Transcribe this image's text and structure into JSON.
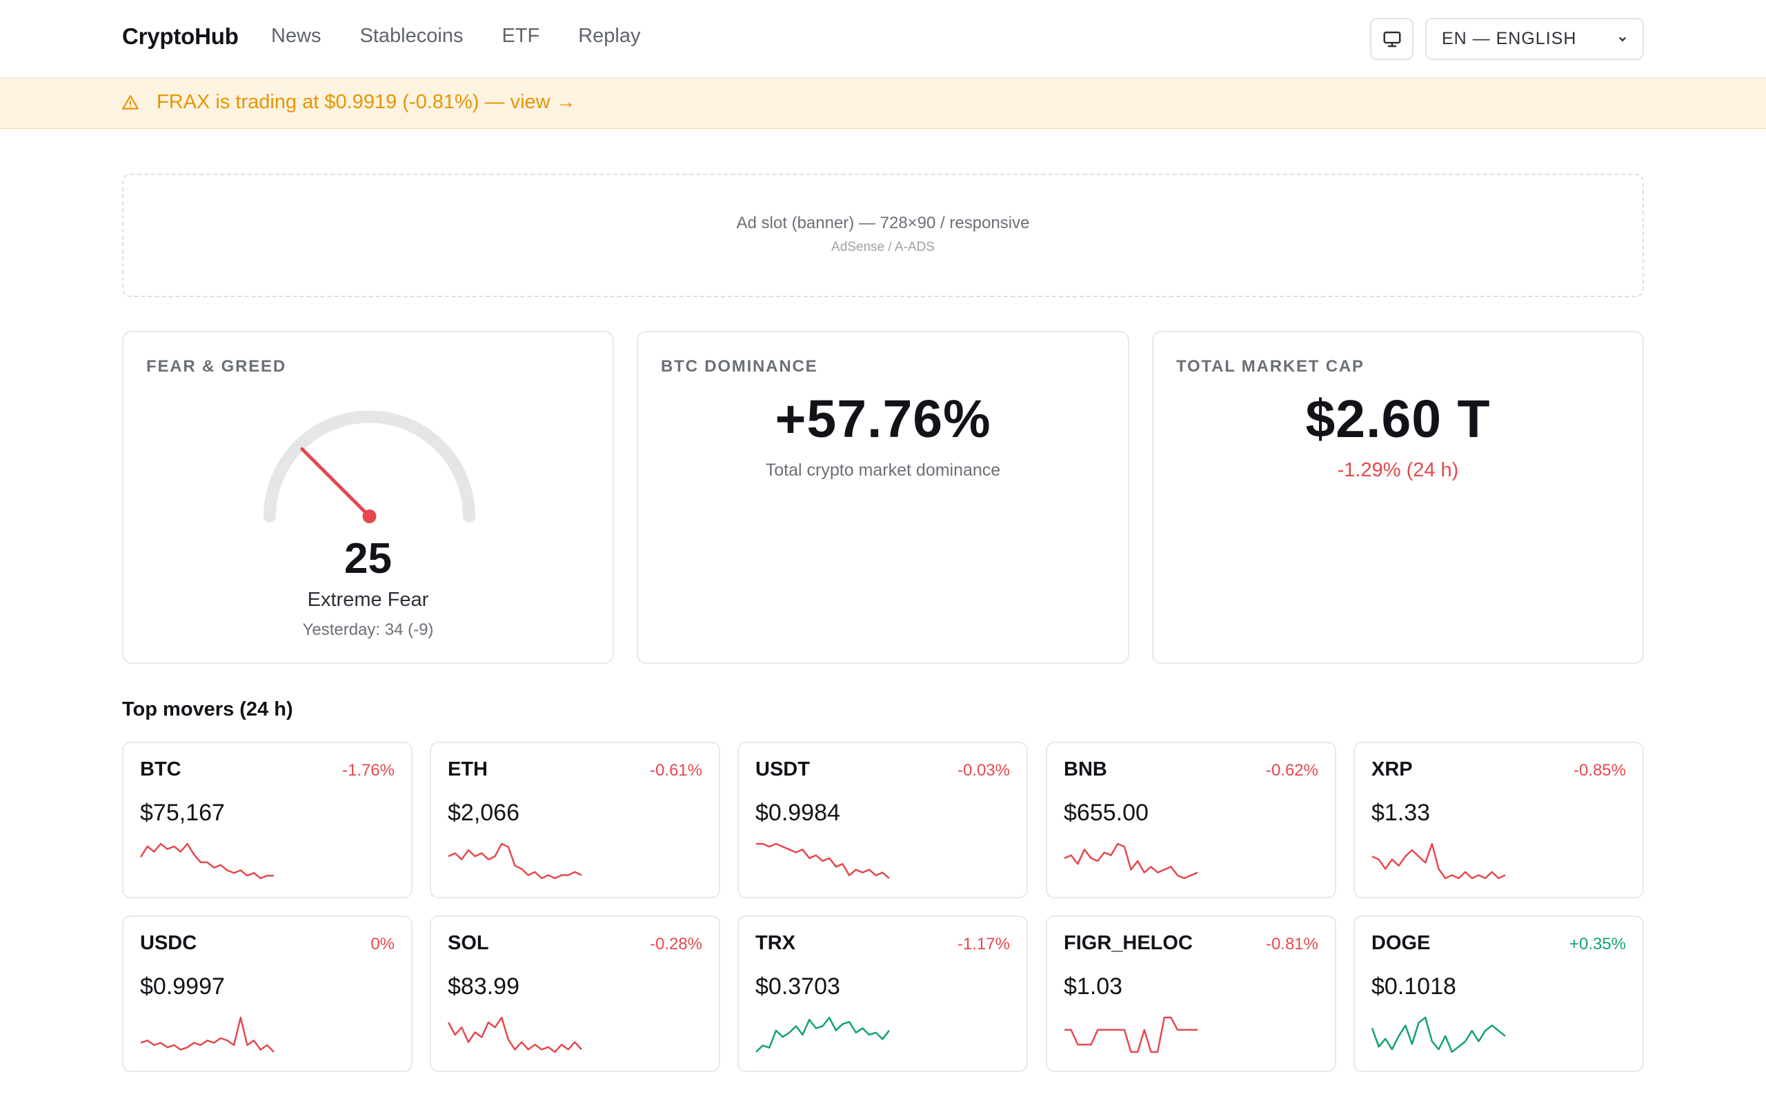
{
  "header": {
    "brand": "CryptoHub",
    "nav": [
      "News",
      "Stablecoins",
      "ETF",
      "Replay"
    ],
    "theme_icon": "monitor-icon",
    "language": "EN — ENGLISH"
  },
  "alert": {
    "icon": "warning-icon",
    "text": "FRAX is trading at $0.9919 (-0.81%) — view →"
  },
  "ad": {
    "title": "Ad slot (banner) — 728×90 / responsive",
    "subtitle": "AdSense / A-ADS"
  },
  "fear_greed": {
    "label": "FEAR & GREED",
    "value": "25",
    "value_number": 25,
    "classification": "Extreme Fear",
    "yesterday": "Yesterday: 34 (-9)"
  },
  "btc_dominance": {
    "label": "BTC DOMINANCE",
    "value": "+57.76%",
    "caption": "Total crypto market dominance"
  },
  "market_cap": {
    "label": "TOTAL MARKET CAP",
    "value": "$2.60 T",
    "change": "-1.29% (24 h)"
  },
  "movers": {
    "title": "Top movers (24 h)",
    "items": [
      {
        "symbol": "BTC",
        "change": "-1.76%",
        "price": "$75,167",
        "trend": "down",
        "spark": [
          10,
          14,
          12,
          15,
          13,
          14,
          12,
          15,
          11,
          8,
          8,
          6,
          7,
          5,
          4,
          5,
          3,
          4,
          2,
          3,
          3
        ]
      },
      {
        "symbol": "ETH",
        "change": "-0.61%",
        "price": "$2,066",
        "trend": "down",
        "spark": [
          10,
          11,
          9,
          12,
          10,
          11,
          9,
          10,
          14,
          13,
          7,
          6,
          4,
          5,
          3,
          4,
          3,
          4,
          4,
          5,
          4
        ]
      },
      {
        "symbol": "USDT",
        "change": "-0.03%",
        "price": "$0.9984",
        "trend": "down",
        "spark": [
          14,
          14,
          13,
          14,
          13,
          12,
          11,
          12,
          9,
          10,
          8,
          9,
          6,
          7,
          3,
          5,
          4,
          5,
          3,
          4,
          2
        ]
      },
      {
        "symbol": "BNB",
        "change": "-0.62%",
        "price": "$655.00",
        "trend": "down",
        "spark": [
          9,
          10,
          7,
          12,
          9,
          8,
          11,
          10,
          14,
          13,
          5,
          8,
          4,
          6,
          4,
          5,
          6,
          3,
          2,
          3,
          4
        ]
      },
      {
        "symbol": "XRP",
        "change": "-0.85%",
        "price": "$1.33",
        "trend": "down",
        "spark": [
          10,
          9,
          6,
          9,
          7,
          10,
          12,
          10,
          8,
          14,
          6,
          3,
          4,
          3,
          5,
          3,
          4,
          3,
          5,
          3,
          4
        ]
      },
      {
        "symbol": "USDC",
        "change": "0%",
        "price": "$0.9997",
        "trend": "down",
        "spark": [
          7,
          8,
          6,
          7,
          5,
          6,
          4,
          5,
          7,
          6,
          8,
          7,
          9,
          8,
          6,
          18,
          6,
          8,
          4,
          6,
          3
        ]
      },
      {
        "symbol": "SOL",
        "change": "-0.28%",
        "price": "$83.99",
        "trend": "down",
        "spark": [
          14,
          9,
          12,
          6,
          10,
          8,
          14,
          12,
          16,
          7,
          3,
          6,
          3,
          5,
          3,
          4,
          2,
          5,
          3,
          6,
          3
        ]
      },
      {
        "symbol": "TRX",
        "change": "-1.17%",
        "price": "$0.3703",
        "trend": "up",
        "spark": [
          2,
          5,
          4,
          12,
          9,
          11,
          14,
          10,
          17,
          13,
          14,
          18,
          12,
          15,
          16,
          11,
          13,
          10,
          11,
          8,
          12
        ]
      },
      {
        "symbol": "FIGR_HELOC",
        "change": "-0.81%",
        "price": "$1.03",
        "trend": "down",
        "spark": [
          10,
          10,
          4,
          4,
          4,
          10,
          10,
          10,
          10,
          10,
          1,
          1,
          10,
          1,
          1,
          15,
          15,
          10,
          10,
          10,
          10
        ]
      },
      {
        "symbol": "DOGE",
        "change": "+0.35%",
        "price": "$0.1018",
        "trend": "up",
        "spark": [
          11,
          4,
          7,
          3,
          8,
          12,
          5,
          13,
          15,
          6,
          3,
          8,
          2,
          4,
          6,
          10,
          6,
          10,
          12,
          10,
          8
        ]
      }
    ]
  },
  "colors": {
    "negative": "#e5484d",
    "positive": "#12a36a",
    "alert_text": "#e69500",
    "alert_bg": "#fdf3e1"
  }
}
